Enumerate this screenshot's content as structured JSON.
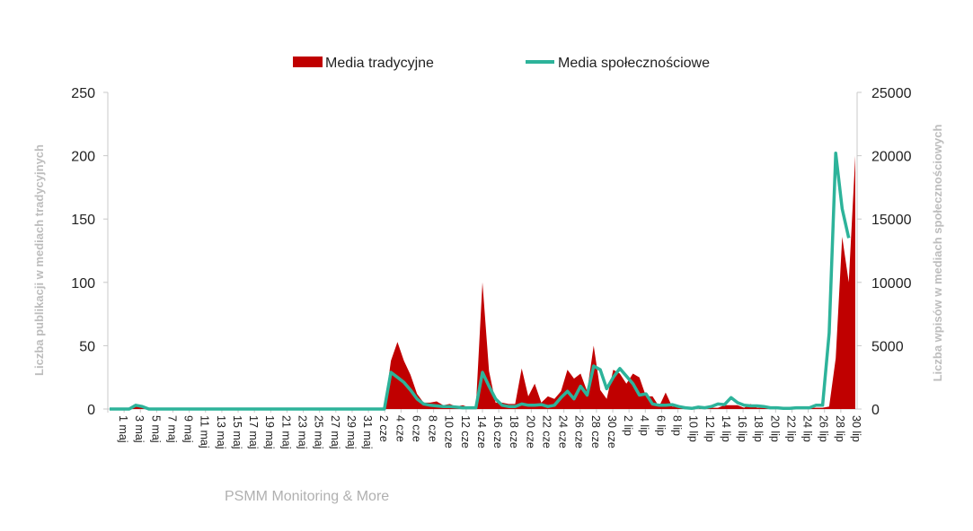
{
  "chart_data": {
    "type": "area+line",
    "title": "",
    "legend": "top-center",
    "source": "PSMM Monitoring & More",
    "colors": {
      "traditional": "#c00000",
      "social": "#2db39a",
      "axis": "#c8c8c8",
      "axis_title": "#bdbdbd"
    },
    "ylabel_left": "Liczba publikacji w mediach tradycyjnych",
    "ylabel_right": "Liczba wpisów w mediach społecznościowych",
    "ylim_left": [
      0,
      250
    ],
    "ylim_right": [
      0,
      25000
    ],
    "yticks_left": [
      "0",
      "50",
      "100",
      "150",
      "200",
      "250"
    ],
    "yticks_right": [
      "0",
      "5000",
      "10000",
      "15000",
      "20000",
      "25000"
    ],
    "x_tick_labels": [
      "1 maj",
      "3 maj",
      "5 maj",
      "7 maj",
      "9 maj",
      "11 maj",
      "13 maj",
      "15 maj",
      "17 maj",
      "19 maj",
      "21 maj",
      "23 maj",
      "25 maj",
      "27 maj",
      "29 maj",
      "31 maj",
      "2 cze",
      "4 cze",
      "6 cze",
      "8 cze",
      "10 cze",
      "12 cze",
      "14 cze",
      "16 cze",
      "18 cze",
      "20 cze",
      "22 cze",
      "24 cze",
      "26 cze",
      "28 cze",
      "30 cze",
      "2 lip",
      "4 lip",
      "6 lip",
      "8 lip",
      "10 lip",
      "12 lip",
      "14 lip",
      "16 lip",
      "18 lip",
      "20 lip",
      "22 lip",
      "24 lip",
      "26 lip",
      "28 lip",
      "30 lip"
    ],
    "series": [
      {
        "name": "Media tradycyjne",
        "axis": "left",
        "kind": "area",
        "values": [
          0,
          0,
          0,
          0,
          2,
          1,
          0,
          0,
          0,
          0,
          1,
          0,
          0,
          0,
          0,
          0,
          0,
          0,
          0,
          0,
          0,
          0,
          0,
          0,
          0,
          0,
          0,
          0,
          0,
          0,
          0,
          0,
          0,
          0,
          0,
          0,
          0,
          0,
          0,
          0,
          0,
          0,
          0,
          38,
          53,
          38,
          27,
          12,
          5,
          5,
          6,
          3,
          4,
          2,
          3,
          1,
          2,
          100,
          30,
          5,
          5,
          4,
          4,
          32,
          10,
          20,
          5,
          10,
          8,
          14,
          31,
          24,
          28,
          14,
          50,
          15,
          8,
          31,
          28,
          20,
          28,
          25,
          10,
          10,
          2,
          13,
          2,
          2,
          0,
          1,
          0,
          2,
          1,
          1,
          3,
          3,
          3,
          1,
          4,
          1,
          1,
          1,
          1,
          1,
          1,
          1,
          1,
          1,
          1,
          1,
          2,
          40,
          136,
          100,
          200
        ]
      },
      {
        "name": "Media społecznościowe",
        "axis": "right",
        "kind": "line",
        "values": [
          0,
          0,
          0,
          0,
          300,
          200,
          0,
          0,
          0,
          0,
          0,
          0,
          0,
          0,
          0,
          0,
          0,
          0,
          0,
          0,
          0,
          0,
          0,
          0,
          0,
          0,
          0,
          0,
          0,
          0,
          0,
          0,
          0,
          0,
          0,
          0,
          0,
          0,
          0,
          0,
          0,
          0,
          0,
          2900,
          2500,
          2100,
          1500,
          800,
          400,
          300,
          250,
          200,
          200,
          150,
          100,
          100,
          100,
          2900,
          1800,
          800,
          300,
          200,
          200,
          400,
          300,
          300,
          350,
          200,
          300,
          900,
          1400,
          800,
          1800,
          1100,
          3400,
          3100,
          1600,
          2500,
          3200,
          2600,
          2000,
          1100,
          1200,
          400,
          300,
          300,
          350,
          200,
          100,
          50,
          150,
          100,
          200,
          400,
          350,
          900,
          500,
          300,
          250,
          250,
          200,
          100,
          100,
          50,
          50,
          100,
          100,
          100,
          300,
          300,
          6000,
          20200,
          15800,
          13500
        ]
      }
    ]
  }
}
